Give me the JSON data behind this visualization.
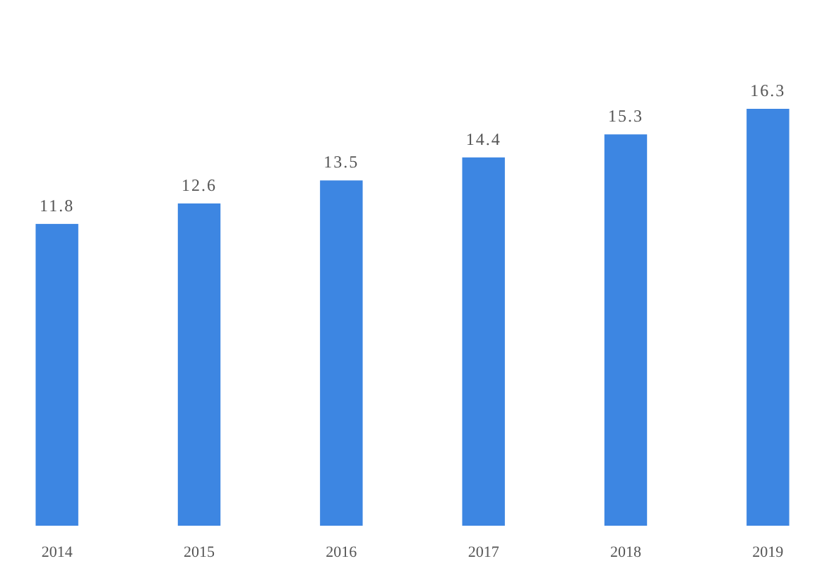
{
  "chart_data": {
    "type": "bar",
    "categories": [
      "2014",
      "2015",
      "2016",
      "2017",
      "2018",
      "2019"
    ],
    "values": [
      11.8,
      12.6,
      13.5,
      14.4,
      15.3,
      16.3
    ],
    "color": "#3d86e2",
    "data_labels": true
  }
}
